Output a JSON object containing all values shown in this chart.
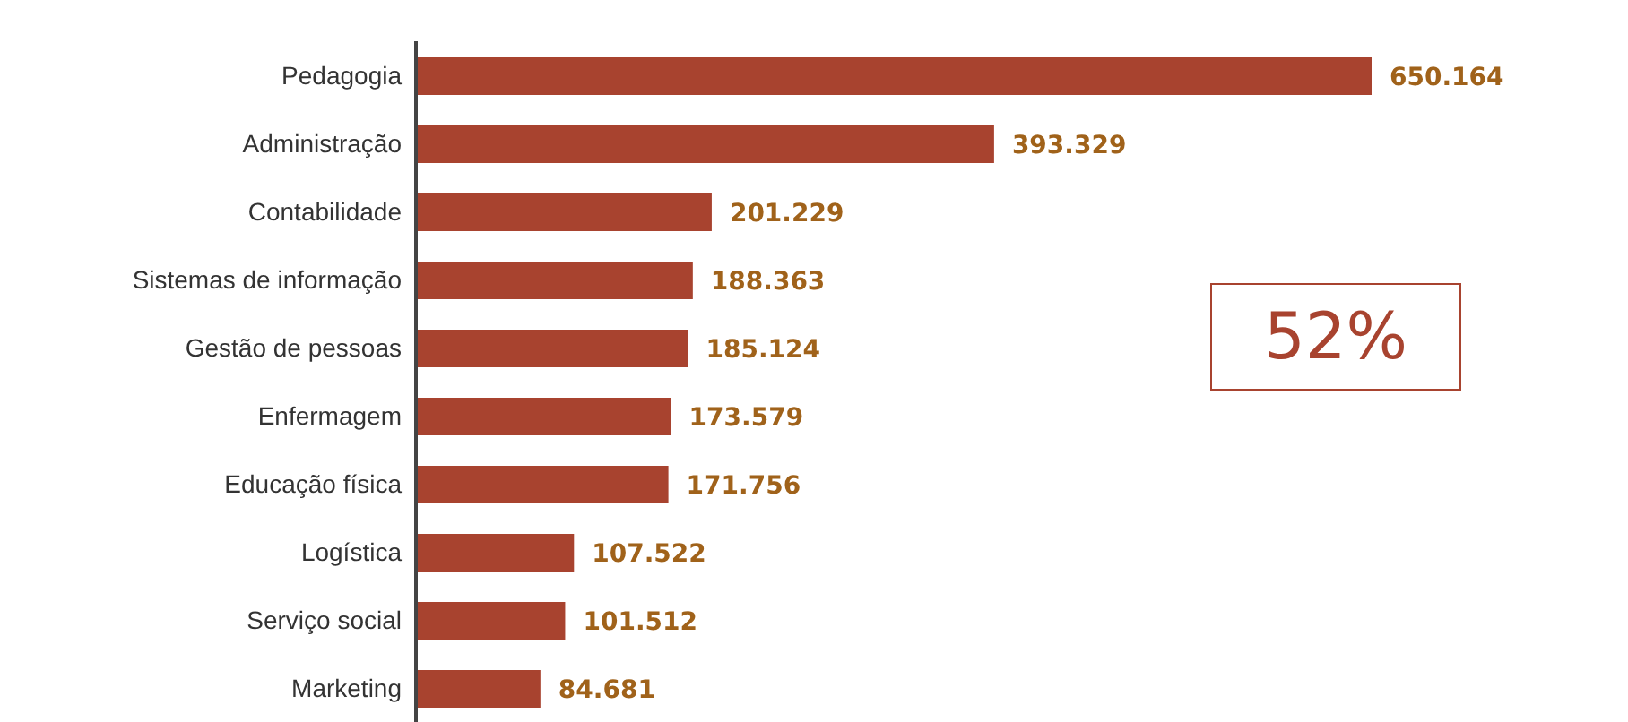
{
  "chart_data": {
    "type": "bar",
    "orientation": "horizontal",
    "categories": [
      "Pedagogia",
      "Administração",
      "Contabilidade",
      "Sistemas de informação",
      "Gestão de pessoas",
      "Enfermagem",
      "Educação física",
      "Logística",
      "Serviço social",
      "Marketing"
    ],
    "values": [
      650164,
      393329,
      201229,
      188363,
      185124,
      173579,
      171756,
      107522,
      101512,
      84681
    ],
    "value_labels": [
      "650.164",
      "393.329",
      "201.229",
      "188.363",
      "185.124",
      "173.579",
      "171.756",
      "107.522",
      "101.512",
      "84.681"
    ],
    "color": "#a8432f",
    "annotations": [
      "52%"
    ],
    "grid": false,
    "legend": false
  }
}
